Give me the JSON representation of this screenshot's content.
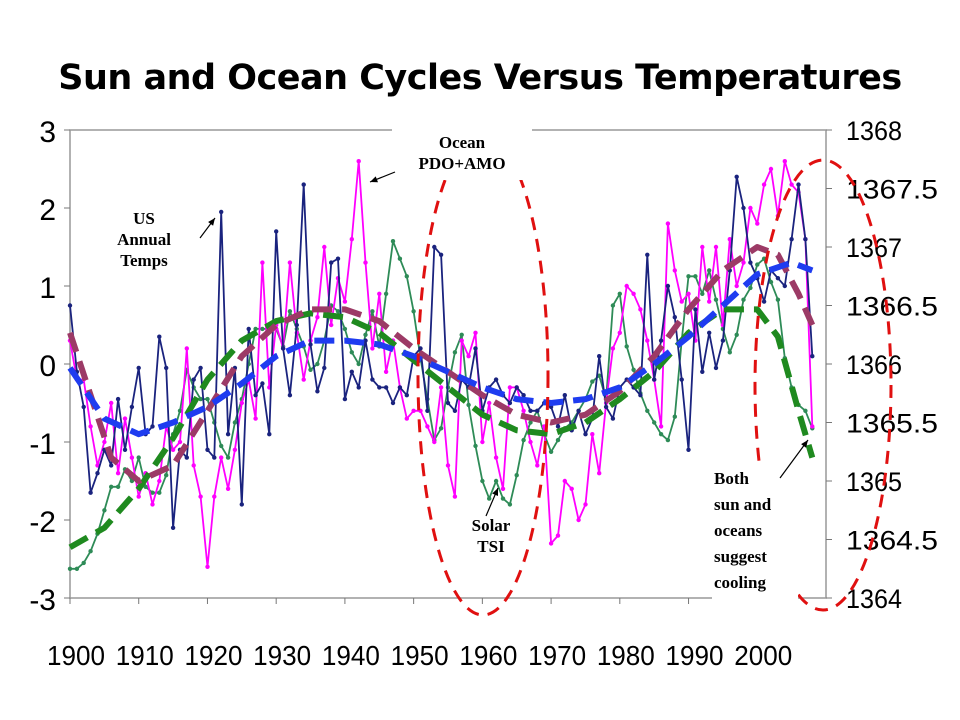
{
  "chart_data": {
    "type": "line",
    "title": "Sun and Ocean Cycles Versus Temperatures",
    "x_ticks": [
      1900,
      1910,
      1920,
      1930,
      1940,
      1950,
      1960,
      1970,
      1980,
      1990,
      2000
    ],
    "xlim": [
      1900,
      2010
    ],
    "ylim": [
      -3,
      3
    ],
    "y_ticks": [
      3,
      2,
      1,
      0,
      -1,
      -2,
      -3
    ],
    "y2lim": [
      1364,
      1368
    ],
    "y2_ticks": [
      1368,
      1367.5,
      1367,
      1366.5,
      1366,
      1365.5,
      1365,
      1364.5,
      1364
    ],
    "grid": false,
    "legend": "none",
    "colors": {
      "us_temps": "#1a237e",
      "ocean": "#ff00ff",
      "solar": "#2e8b57",
      "us_temps_trend": "#1e3cf0",
      "ocean_trend": "#9c3a66",
      "solar_trend": "#1f8a1f",
      "ellipse": "#e01010"
    },
    "annotations": [
      {
        "id": "us",
        "lines": [
          "US",
          "Annual",
          "Temps"
        ]
      },
      {
        "id": "ocean",
        "lines": [
          "Ocean",
          "PDO+AMO"
        ]
      },
      {
        "id": "solar",
        "lines": [
          "Solar",
          "TSI"
        ]
      },
      {
        "id": "both",
        "lines": [
          "Both",
          "sun and",
          "oceans",
          "suggest",
          "cooling"
        ]
      }
    ],
    "series": [
      {
        "id": "us_temps",
        "axis": "left",
        "style": "line-markers",
        "x": [
          1900,
          1901,
          1902,
          1903,
          1904,
          1905,
          1906,
          1907,
          1908,
          1909,
          1910,
          1911,
          1912,
          1913,
          1914,
          1915,
          1916,
          1917,
          1918,
          1919,
          1920,
          1921,
          1922,
          1923,
          1924,
          1925,
          1926,
          1927,
          1928,
          1929,
          1930,
          1931,
          1932,
          1933,
          1934,
          1935,
          1936,
          1937,
          1938,
          1939,
          1940,
          1941,
          1942,
          1943,
          1944,
          1945,
          1946,
          1947,
          1948,
          1949,
          1950,
          1951,
          1952,
          1953,
          1954,
          1955,
          1956,
          1957,
          1958,
          1959,
          1960,
          1961,
          1962,
          1963,
          1964,
          1965,
          1966,
          1967,
          1968,
          1969,
          1970,
          1971,
          1972,
          1973,
          1974,
          1975,
          1976,
          1977,
          1978,
          1979,
          1980,
          1981,
          1982,
          1983,
          1984,
          1985,
          1986,
          1987,
          1988,
          1989,
          1990,
          1991,
          1992,
          1993,
          1994,
          1995,
          1996,
          1997,
          1998,
          1999,
          2000,
          2001,
          2002,
          2003,
          2004,
          2005,
          2006,
          2007,
          2008
        ],
        "y": [
          0.75,
          -0.1,
          -0.55,
          -1.65,
          -1.4,
          -1.1,
          -1.3,
          -0.45,
          -1.1,
          -0.55,
          -0.05,
          -0.9,
          -0.8,
          0.35,
          -0.05,
          -2.1,
          -1.1,
          -1.2,
          -0.2,
          -0.05,
          -1.1,
          -1.2,
          1.95,
          -0.9,
          -0.05,
          -1.8,
          0.45,
          -0.4,
          -0.25,
          -0.9,
          1.7,
          0.2,
          -0.4,
          0.5,
          2.3,
          0.25,
          -0.35,
          -0.05,
          1.3,
          1.35,
          -0.45,
          -0.1,
          -0.3,
          0.3,
          -0.2,
          -0.3,
          -0.3,
          -0.5,
          -0.3,
          -0.4,
          0.1,
          0.2,
          -0.6,
          1.5,
          1.4,
          -0.5,
          -0.6,
          -0.2,
          -0.3,
          0.2,
          -0.6,
          -0.3,
          -0.2,
          -0.4,
          -0.5,
          -0.3,
          -0.4,
          -0.6,
          -0.6,
          -0.5,
          -0.55,
          -0.8,
          -0.4,
          -0.85,
          -0.6,
          -0.9,
          -0.7,
          0.1,
          -0.55,
          -0.7,
          -0.3,
          -0.2,
          -0.3,
          -0.4,
          1.4,
          -0.2,
          0.3,
          1.0,
          0.6,
          -0.2,
          -1.1,
          0.7,
          -0.1,
          0.4,
          -0.05,
          0.3,
          1.2,
          2.4,
          2.0,
          1.3,
          1.1,
          0.8,
          1.2,
          1.1,
          1.0,
          1.6,
          2.3,
          1.6,
          0.1
        ]
      },
      {
        "id": "ocean",
        "axis": "left",
        "style": "line-markers",
        "x": [
          1900,
          1901,
          1902,
          1903,
          1904,
          1905,
          1906,
          1907,
          1908,
          1909,
          1910,
          1911,
          1912,
          1913,
          1914,
          1915,
          1916,
          1917,
          1918,
          1919,
          1920,
          1921,
          1922,
          1923,
          1924,
          1925,
          1926,
          1927,
          1928,
          1929,
          1930,
          1931,
          1932,
          1933,
          1934,
          1935,
          1936,
          1937,
          1938,
          1939,
          1940,
          1941,
          1942,
          1943,
          1944,
          1945,
          1946,
          1947,
          1948,
          1949,
          1950,
          1951,
          1952,
          1953,
          1954,
          1955,
          1956,
          1957,
          1958,
          1959,
          1960,
          1961,
          1962,
          1963,
          1964,
          1965,
          1966,
          1967,
          1968,
          1969,
          1970,
          1971,
          1972,
          1973,
          1974,
          1975,
          1976,
          1977,
          1978,
          1979,
          1980,
          1981,
          1982,
          1983,
          1984,
          1985,
          1986,
          1987,
          1988,
          1989,
          1990,
          1991,
          1992,
          1993,
          1994,
          1995,
          1996,
          1997,
          1998,
          1999,
          2000,
          2001,
          2002,
          2003,
          2004,
          2005,
          2006,
          2007,
          2008
        ],
        "y": [
          0.3,
          -0.2,
          -0.2,
          -0.8,
          -1.3,
          -1.0,
          -0.5,
          -1.4,
          -0.7,
          -1.2,
          -1.7,
          -1.4,
          -1.8,
          -1.5,
          -0.8,
          -1.1,
          -1.0,
          0.2,
          -1.3,
          -1.7,
          -2.6,
          -1.7,
          -1.2,
          -1.6,
          -1.1,
          -0.5,
          -0.2,
          -0.7,
          1.3,
          -0.3,
          0.5,
          0.2,
          1.3,
          0.4,
          -0.2,
          0.3,
          0.6,
          1.5,
          0.5,
          1.1,
          0.8,
          1.6,
          2.6,
          1.3,
          0.2,
          0.9,
          -0.1,
          0.3,
          -0.3,
          -0.7,
          -0.6,
          -0.6,
          -0.8,
          -1.0,
          -0.3,
          -1.3,
          -1.7,
          0.3,
          0.1,
          0.4,
          -1.0,
          -0.5,
          -1.2,
          -1.6,
          -0.3,
          -0.3,
          -0.6,
          -1.0,
          -1.3,
          -0.8,
          -2.3,
          -2.2,
          -1.5,
          -1.6,
          -2.0,
          -1.8,
          -0.9,
          -1.4,
          -0.5,
          0.2,
          0.4,
          1.0,
          0.9,
          0.7,
          0.3,
          -0.2,
          -0.8,
          1.8,
          1.2,
          0.8,
          0.9,
          0.3,
          1.5,
          0.8,
          1.5,
          0.5,
          1.6,
          1.0,
          1.3,
          2.0,
          1.8,
          2.3,
          2.5,
          1.9,
          2.6,
          2.3,
          2.2,
          1.6,
          -0.8
        ]
      },
      {
        "id": "solar",
        "axis": "right",
        "style": "line-markers",
        "x": [
          1900,
          1901,
          1902,
          1903,
          1904,
          1905,
          1906,
          1907,
          1908,
          1909,
          1910,
          1911,
          1912,
          1913,
          1914,
          1915,
          1916,
          1917,
          1918,
          1919,
          1920,
          1921,
          1922,
          1923,
          1924,
          1925,
          1926,
          1927,
          1928,
          1929,
          1930,
          1931,
          1932,
          1933,
          1934,
          1935,
          1936,
          1937,
          1938,
          1939,
          1940,
          1941,
          1942,
          1943,
          1944,
          1945,
          1946,
          1947,
          1948,
          1949,
          1950,
          1951,
          1952,
          1953,
          1954,
          1955,
          1956,
          1957,
          1958,
          1959,
          1960,
          1961,
          1962,
          1963,
          1964,
          1965,
          1966,
          1967,
          1968,
          1969,
          1970,
          1971,
          1972,
          1973,
          1974,
          1975,
          1976,
          1977,
          1978,
          1979,
          1980,
          1981,
          1982,
          1983,
          1984,
          1985,
          1986,
          1987,
          1988,
          1989,
          1990,
          1991,
          1992,
          1993,
          1994,
          1995,
          1996,
          1997,
          1998,
          1999,
          2000,
          2001,
          2002,
          2003,
          2004,
          2005,
          2006,
          2007,
          2008
        ],
        "y": [
          1364.25,
          1364.25,
          1364.3,
          1364.4,
          1364.55,
          1364.75,
          1364.95,
          1364.95,
          1365.1,
          1365.0,
          1365.2,
          1364.95,
          1364.9,
          1364.9,
          1365.05,
          1365.4,
          1365.6,
          1365.95,
          1365.8,
          1365.7,
          1365.7,
          1365.5,
          1365.3,
          1365.2,
          1365.5,
          1365.7,
          1366.0,
          1366.3,
          1366.3,
          1366.3,
          1366.3,
          1366.15,
          1366.45,
          1366.3,
          1366.15,
          1365.95,
          1366.0,
          1366.2,
          1366.5,
          1366.45,
          1366.3,
          1366.1,
          1366.0,
          1366.25,
          1366.45,
          1366.15,
          1366.6,
          1367.05,
          1366.9,
          1366.75,
          1366.45,
          1366.05,
          1365.7,
          1365.35,
          1365.45,
          1365.8,
          1366.1,
          1366.25,
          1365.65,
          1365.3,
          1365.0,
          1364.85,
          1365.0,
          1364.85,
          1364.8,
          1365.05,
          1365.35,
          1365.5,
          1365.6,
          1365.4,
          1365.25,
          1365.35,
          1365.45,
          1365.5,
          1365.6,
          1365.7,
          1365.85,
          1365.9,
          1365.7,
          1366.5,
          1366.6,
          1366.15,
          1365.95,
          1365.75,
          1365.6,
          1365.5,
          1365.4,
          1365.35,
          1365.55,
          1366.2,
          1366.75,
          1366.75,
          1366.6,
          1366.8,
          1366.55,
          1366.3,
          1366.1,
          1366.25,
          1366.55,
          1366.65,
          1366.85,
          1366.9,
          1366.7,
          1366.55,
          1366.05,
          1365.8,
          1365.65,
          1365.6,
          1365.45
        ]
      },
      {
        "id": "us_temps_trend",
        "axis": "left",
        "style": "dashed",
        "x": [
          1900,
          1905,
          1910,
          1915,
          1920,
          1925,
          1930,
          1935,
          1940,
          1945,
          1950,
          1955,
          1960,
          1965,
          1970,
          1975,
          1980,
          1985,
          1990,
          1995,
          2000,
          2005,
          2008
        ],
        "y": [
          -0.05,
          -0.7,
          -0.9,
          -0.75,
          -0.55,
          -0.25,
          0.1,
          0.3,
          0.3,
          0.25,
          0.1,
          -0.1,
          -0.3,
          -0.45,
          -0.5,
          -0.45,
          -0.3,
          0.0,
          0.35,
          0.75,
          1.15,
          1.3,
          1.2
        ]
      },
      {
        "id": "ocean_trend",
        "axis": "left",
        "style": "dashed",
        "x": [
          1900,
          1903,
          1906,
          1910,
          1915,
          1920,
          1925,
          1930,
          1935,
          1940,
          1945,
          1950,
          1955,
          1960,
          1965,
          1970,
          1975,
          1980,
          1985,
          1990,
          1995,
          2000,
          2003,
          2006,
          2008
        ],
        "y": [
          0.4,
          -0.4,
          -1.2,
          -1.5,
          -1.3,
          -0.6,
          0.1,
          0.5,
          0.7,
          0.7,
          0.55,
          0.2,
          -0.1,
          -0.4,
          -0.65,
          -0.75,
          -0.65,
          -0.35,
          0.1,
          0.7,
          1.2,
          1.5,
          1.4,
          0.9,
          0.5
        ]
      },
      {
        "id": "solar_trend",
        "axis": "left",
        "style": "dashed",
        "x": [
          1900,
          1905,
          1910,
          1915,
          1920,
          1925,
          1930,
          1935,
          1940,
          1945,
          1950,
          1955,
          1960,
          1965,
          1970,
          1975,
          1980,
          1985,
          1990,
          1995,
          2000,
          2003,
          2006,
          2008
        ],
        "y": [
          -2.35,
          -2.1,
          -1.6,
          -0.95,
          -0.2,
          0.3,
          0.55,
          0.65,
          0.6,
          0.4,
          0.05,
          -0.3,
          -0.65,
          -0.85,
          -0.9,
          -0.75,
          -0.45,
          -0.1,
          0.4,
          0.7,
          0.7,
          0.35,
          -0.6,
          -1.2
        ]
      }
    ]
  }
}
